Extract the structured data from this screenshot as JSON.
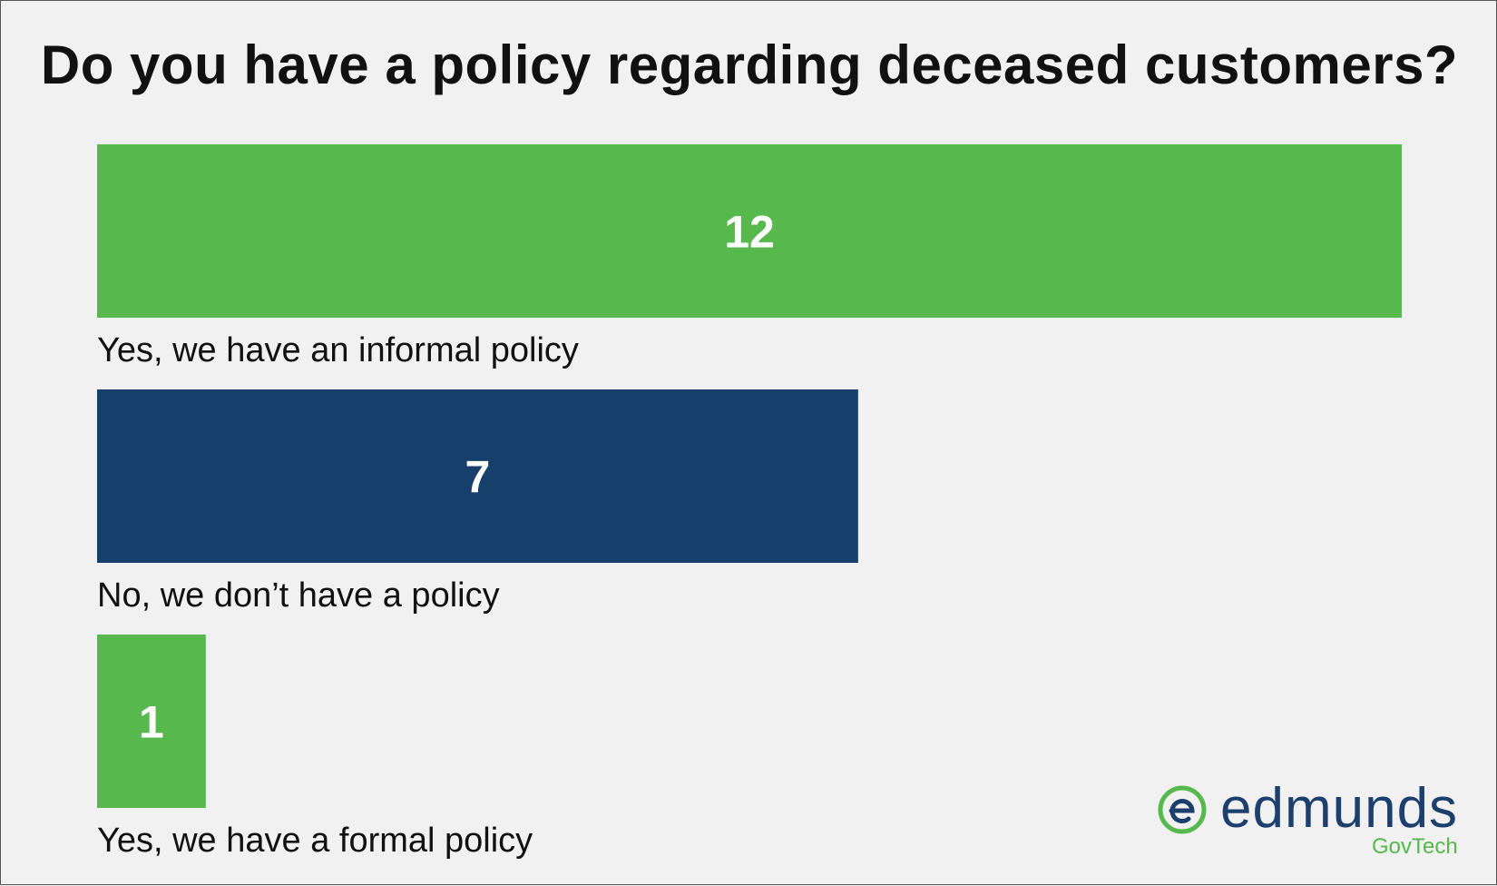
{
  "chart_data": {
    "type": "bar",
    "orientation": "horizontal",
    "title": "Do you have a policy regarding deceased customers?",
    "categories": [
      "Yes, we have an informal policy",
      "No, we don’t have a policy",
      "Yes, we have a formal policy"
    ],
    "values": [
      12,
      7,
      1
    ],
    "colors": [
      "#56b84d",
      "#173f6b",
      "#56b84d"
    ],
    "xlim": [
      0,
      12
    ],
    "data_labels": "inside-center",
    "grid": false,
    "legend": "none"
  },
  "logo": {
    "word": "edmunds",
    "sub": "GovTech",
    "colors": {
      "word": "#1d3f6e",
      "accent": "#56b84d"
    }
  }
}
